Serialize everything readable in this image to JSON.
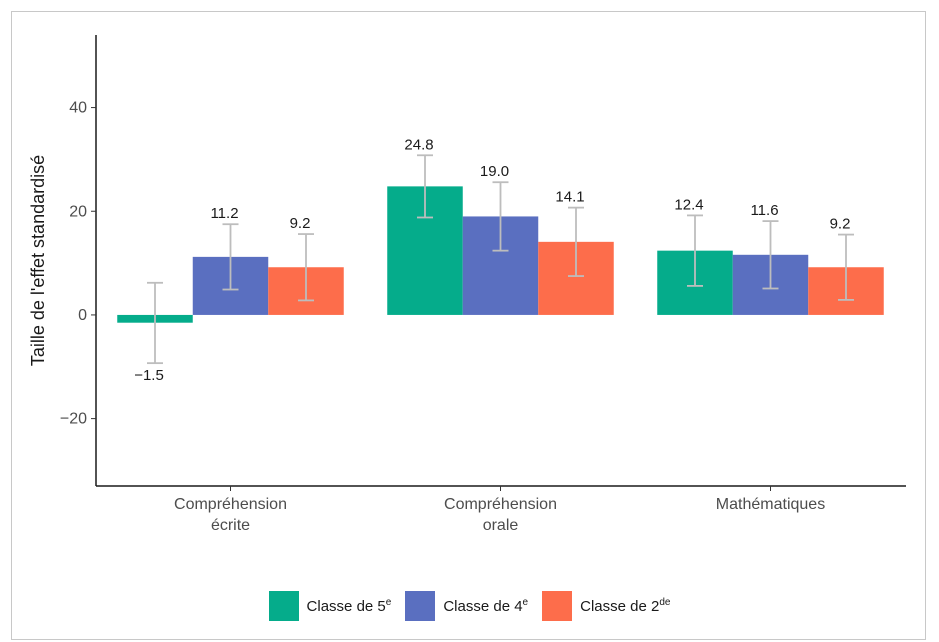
{
  "chart_data": {
    "type": "bar",
    "ylabel": "Taille de l'effet standardisé",
    "xlabel": "",
    "ylim": [
      -33,
      54
    ],
    "yticks": [
      -20,
      0,
      20,
      40
    ],
    "categories": [
      [
        "Compréhension",
        "écrite"
      ],
      [
        "Compréhension",
        "orale"
      ],
      [
        "Mathématiques"
      ]
    ],
    "series": [
      {
        "name": "Classe de 5e",
        "label_main": "Classe de 5",
        "label_sup": "e",
        "color": "#05ac8b",
        "values": [
          -1.5,
          24.8,
          12.4
        ],
        "err_low": [
          -9.3,
          18.8,
          5.6
        ],
        "err_high": [
          6.2,
          30.8,
          19.2
        ],
        "labels": [
          "−1.5",
          "24.8",
          "12.4"
        ]
      },
      {
        "name": "Classe de 4e",
        "label_main": "Classe de 4",
        "label_sup": "e",
        "color": "#5a6fc0",
        "values": [
          11.2,
          19.0,
          11.6
        ],
        "err_low": [
          4.9,
          12.4,
          5.1
        ],
        "err_high": [
          17.5,
          25.6,
          18.1
        ],
        "labels": [
          "11.2",
          "19.0",
          "11.6"
        ]
      },
      {
        "name": "Classe de 2de",
        "label_main": "Classe de 2",
        "label_sup": "de",
        "color": "#fd6d4b",
        "values": [
          9.2,
          14.1,
          9.2
        ],
        "err_low": [
          2.8,
          7.5,
          2.9
        ],
        "err_high": [
          15.6,
          20.7,
          15.5
        ],
        "labels": [
          "9.2",
          "14.1",
          "9.2"
        ]
      }
    ],
    "error_bar_color": "#bdbdbd",
    "grid": false,
    "legend_position": "bottom"
  }
}
